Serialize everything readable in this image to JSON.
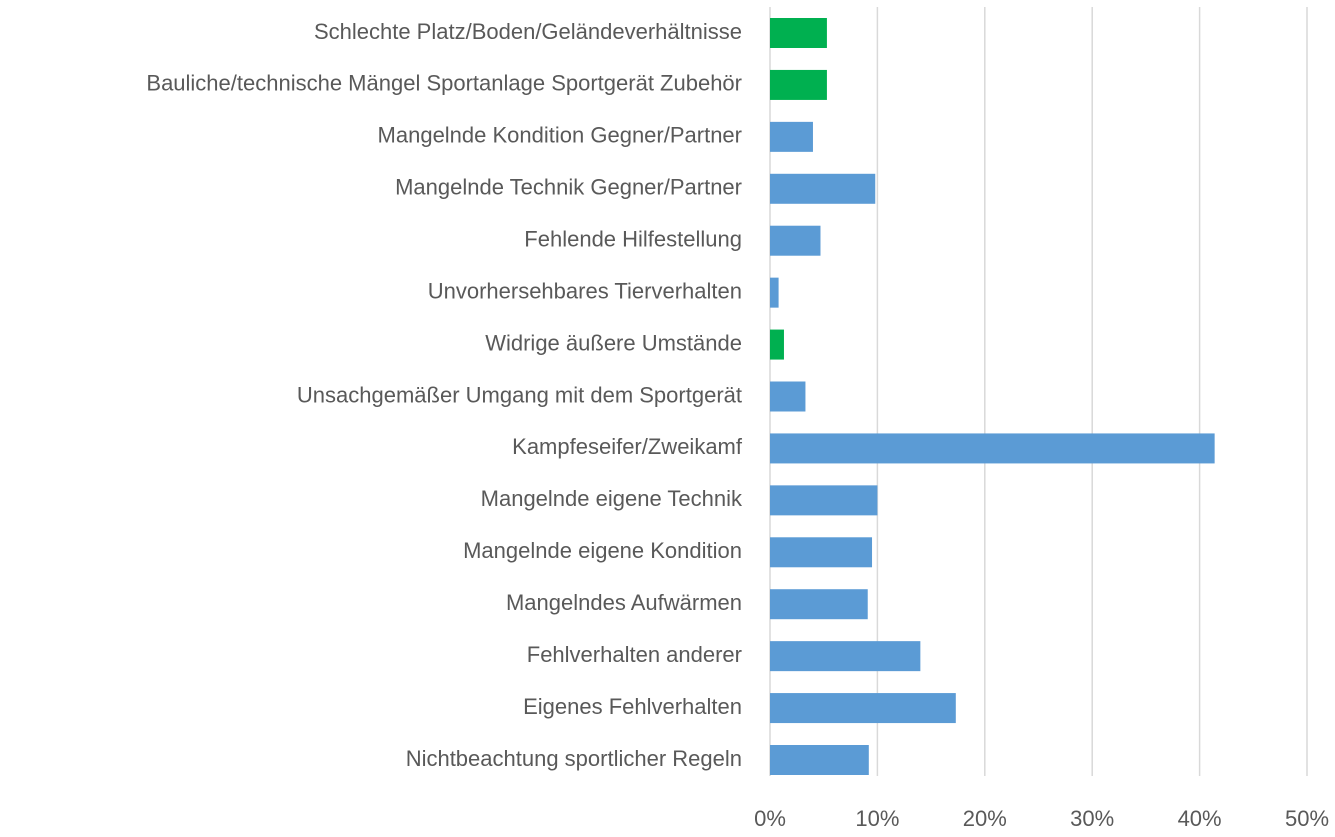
{
  "chart_data": {
    "type": "bar",
    "orientation": "horizontal",
    "categories": [
      "Schlechte Platz/Boden/Geländeverhältnisse",
      "Bauliche/technische Mängel Sportanlage Sportgerät Zubehör",
      "Mangelnde Kondition Gegner/Partner",
      "Mangelnde Technik Gegner/Partner",
      "Fehlende Hilfestellung",
      "Unvorhersehbares Tierverhalten",
      "Widrige äußere Umstände",
      "Unsachgemäßer Umgang mit dem Sportgerät",
      "Kampfeseifer/Zweikamf",
      "Mangelnde eigene Technik",
      "Mangelnde eigene Kondition",
      "Mangelndes Aufwärmen",
      "Fehlverhalten anderer",
      "Eigenes Fehlverhalten",
      "Nichtbeachtung sportlicher Regeln"
    ],
    "values": [
      5.3,
      5.3,
      4.0,
      9.8,
      4.7,
      0.8,
      1.3,
      3.3,
      41.4,
      10.0,
      9.5,
      9.1,
      14.0,
      17.3,
      9.2
    ],
    "colors": [
      "#00b050",
      "#00b050",
      "#5b9bd5",
      "#5b9bd5",
      "#5b9bd5",
      "#5b9bd5",
      "#00b050",
      "#5b9bd5",
      "#5b9bd5",
      "#5b9bd5",
      "#5b9bd5",
      "#5b9bd5",
      "#5b9bd5",
      "#5b9bd5",
      "#5b9bd5"
    ],
    "xlim": [
      0,
      50
    ],
    "xticks": [
      {
        "value": 0,
        "label": "0%"
      },
      {
        "value": 10,
        "label": "10%"
      },
      {
        "value": 20,
        "label": "20%"
      },
      {
        "value": 30,
        "label": "30%"
      },
      {
        "value": 40,
        "label": "40%"
      },
      {
        "value": 50,
        "label": "50%"
      }
    ],
    "grid": true
  }
}
